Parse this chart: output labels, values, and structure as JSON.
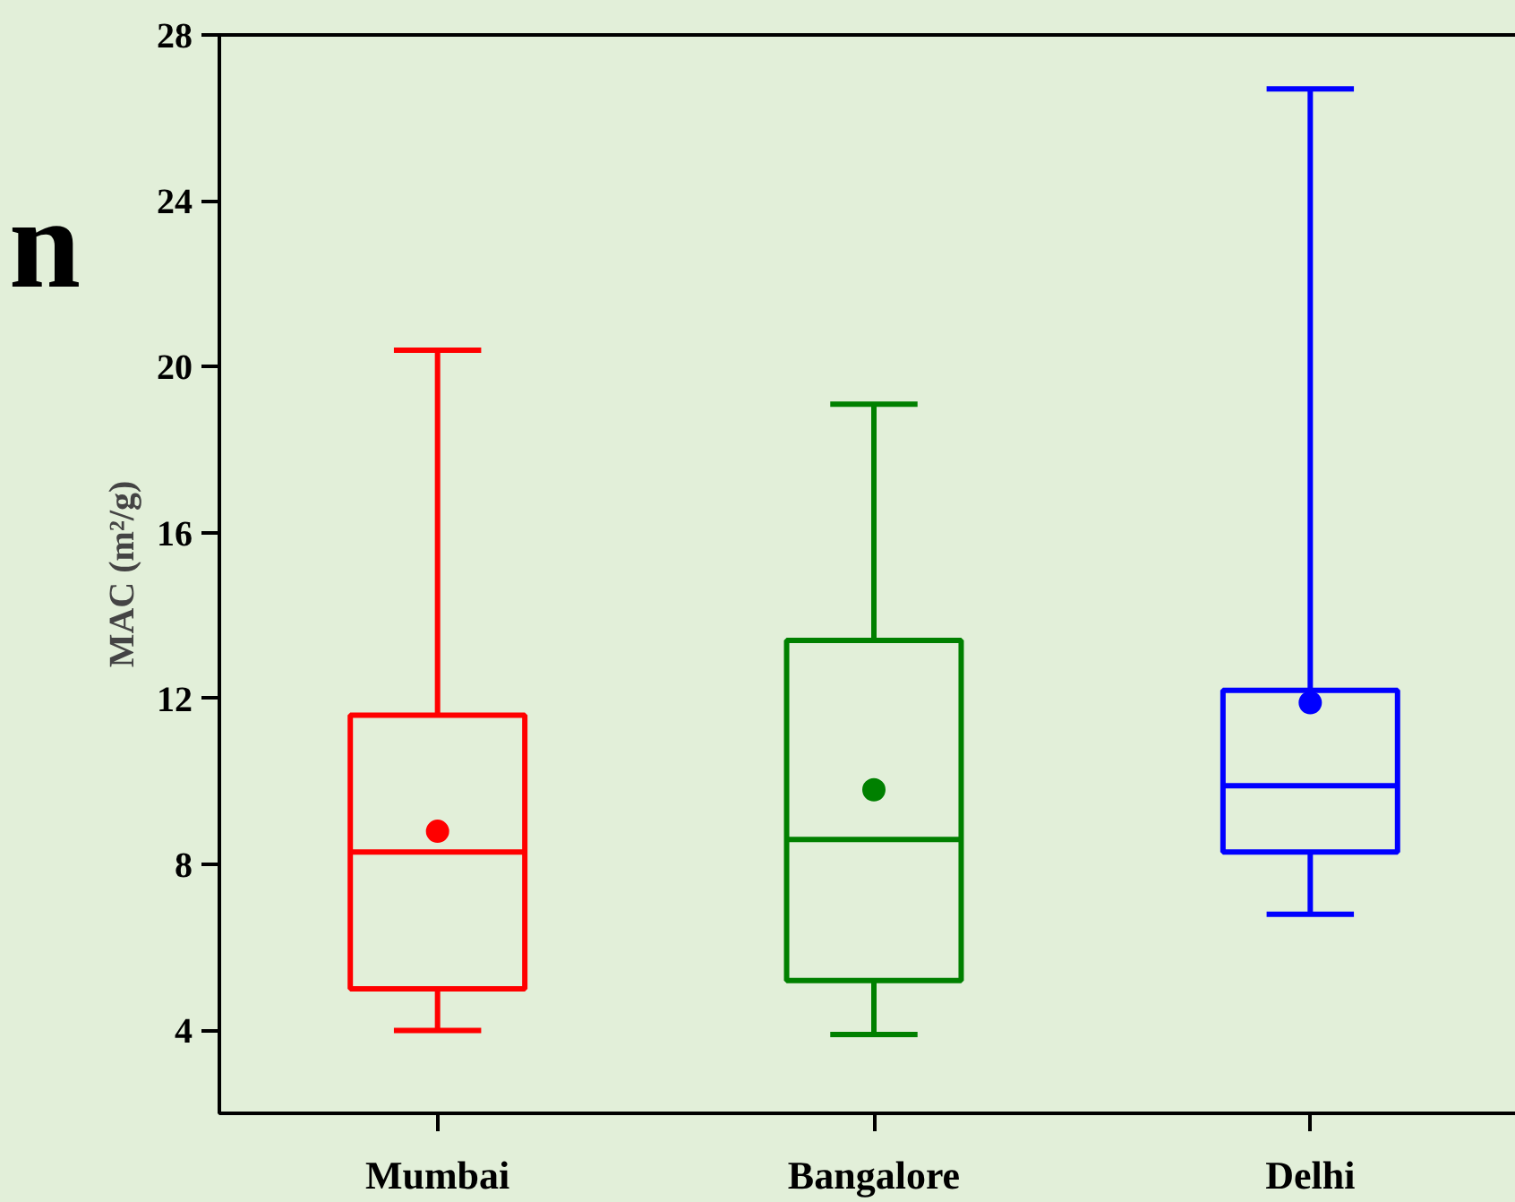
{
  "chart_data": {
    "type": "box",
    "ylabel": "MAC (m²/g)",
    "categories": [
      "Mumbai",
      "Bangalore",
      "Delhi"
    ],
    "colors": [
      "#ff0000",
      "#008000",
      "#0000ff"
    ],
    "boxes": [
      {
        "low": 4.0,
        "q1": 5.0,
        "median": 8.3,
        "q3": 11.6,
        "high": 20.4,
        "mean": 8.8
      },
      {
        "low": 3.9,
        "q1": 5.2,
        "median": 8.6,
        "q3": 13.4,
        "high": 19.1,
        "mean": 9.8
      },
      {
        "low": 6.8,
        "q1": 8.3,
        "median": 9.9,
        "q3": 12.2,
        "high": 26.7,
        "mean": 11.9
      }
    ],
    "ylim": [
      2,
      28
    ],
    "yticks": [
      4,
      8,
      12,
      16,
      20,
      24,
      28
    ],
    "annotations": [
      "n"
    ]
  }
}
